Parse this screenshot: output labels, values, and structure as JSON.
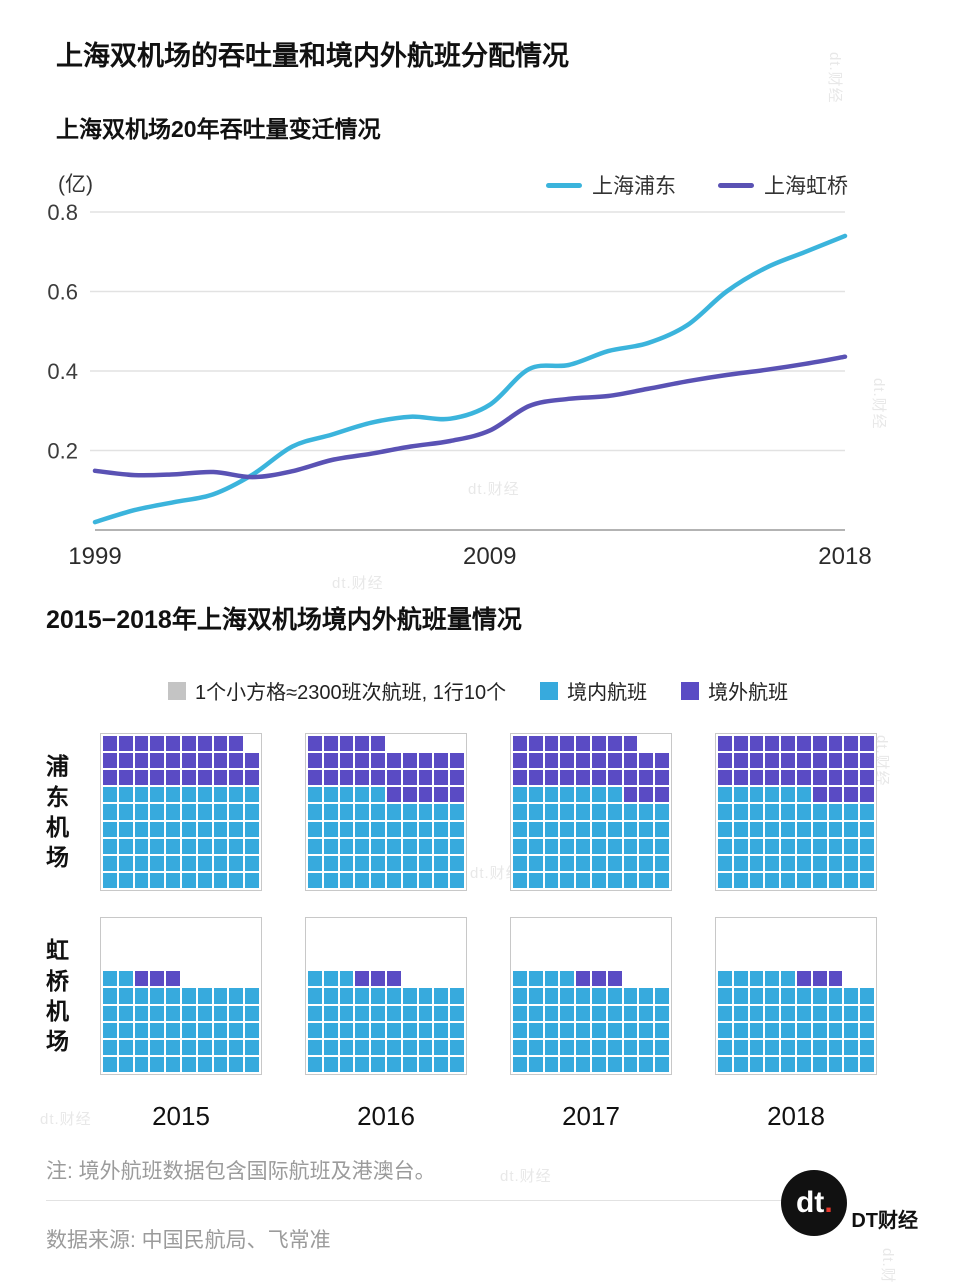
{
  "page": {
    "title": "上海双机场的吞吐量和境内外航班分配情况",
    "watermark": "dt.财经"
  },
  "chart_data": [
    {
      "type": "line",
      "title": "上海双机场20年吞吐量变迁情况",
      "unit_label": "(亿)",
      "ylabel": "吞吐量(亿)",
      "x": [
        1999,
        2000,
        2001,
        2002,
        2003,
        2004,
        2005,
        2006,
        2007,
        2008,
        2009,
        2010,
        2011,
        2012,
        2013,
        2014,
        2015,
        2016,
        2017,
        2018
      ],
      "xticks": [
        1999,
        2009,
        2018
      ],
      "yticks": [
        0.2,
        0.4,
        0.6,
        0.8
      ],
      "ylim": [
        0,
        0.8
      ],
      "grid": true,
      "legend_position": "top-right",
      "series": [
        {
          "name": "上海浦东",
          "color": "#3BB4DC",
          "values": [
            0.02,
            0.05,
            0.07,
            0.09,
            0.14,
            0.21,
            0.24,
            0.27,
            0.285,
            0.28,
            0.315,
            0.405,
            0.415,
            0.45,
            0.47,
            0.515,
            0.6,
            0.66,
            0.7,
            0.74
          ]
        },
        {
          "name": "上海虹桥",
          "color": "#5A52B4",
          "values": [
            0.149,
            0.138,
            0.14,
            0.146,
            0.133,
            0.148,
            0.176,
            0.192,
            0.21,
            0.224,
            0.25,
            0.312,
            0.33,
            0.337,
            0.355,
            0.374,
            0.39,
            0.403,
            0.418,
            0.436
          ]
        }
      ]
    },
    {
      "type": "waffle",
      "title": "2015−2018年上海双机场境内外航班量情况",
      "flights_per_cell": 2300,
      "cols": 10,
      "rows": 9,
      "legend": [
        {
          "label": "1个小方格≈2300班次航班, 1行10个",
          "color": "#c4c4c4"
        },
        {
          "label": "境内航班",
          "color": "#37AADD"
        },
        {
          "label": "境外航班",
          "color": "#5A4BC4"
        }
      ],
      "years": [
        "2015",
        "2016",
        "2017",
        "2018"
      ],
      "colors": {
        "domestic": "#37AADD",
        "international": "#5A4BC4"
      },
      "row_groups": [
        {
          "label": "浦东机场",
          "blocks": [
            {
              "year": "2015",
              "domestic_cells": 60,
              "international_cells": 29
            },
            {
              "year": "2016",
              "domestic_cells": 55,
              "international_cells": 30
            },
            {
              "year": "2017",
              "domestic_cells": 57,
              "international_cells": 31
            },
            {
              "year": "2018",
              "domestic_cells": 56,
              "international_cells": 34
            }
          ]
        },
        {
          "label": "虹桥机场",
          "blocks": [
            {
              "year": "2015",
              "domestic_cells": 52,
              "international_cells": 3
            },
            {
              "year": "2016",
              "domestic_cells": 53,
              "international_cells": 3
            },
            {
              "year": "2017",
              "domestic_cells": 54,
              "international_cells": 3
            },
            {
              "year": "2018",
              "domestic_cells": 55,
              "international_cells": 3
            }
          ]
        }
      ]
    }
  ],
  "footer": {
    "note": "注: 境外航班数据包含国际航班及港澳台。",
    "source": "数据来源: 中国民航局、飞常准",
    "logo_mark": "dt",
    "logo_dot": ".",
    "logo_name": "DT财经"
  }
}
